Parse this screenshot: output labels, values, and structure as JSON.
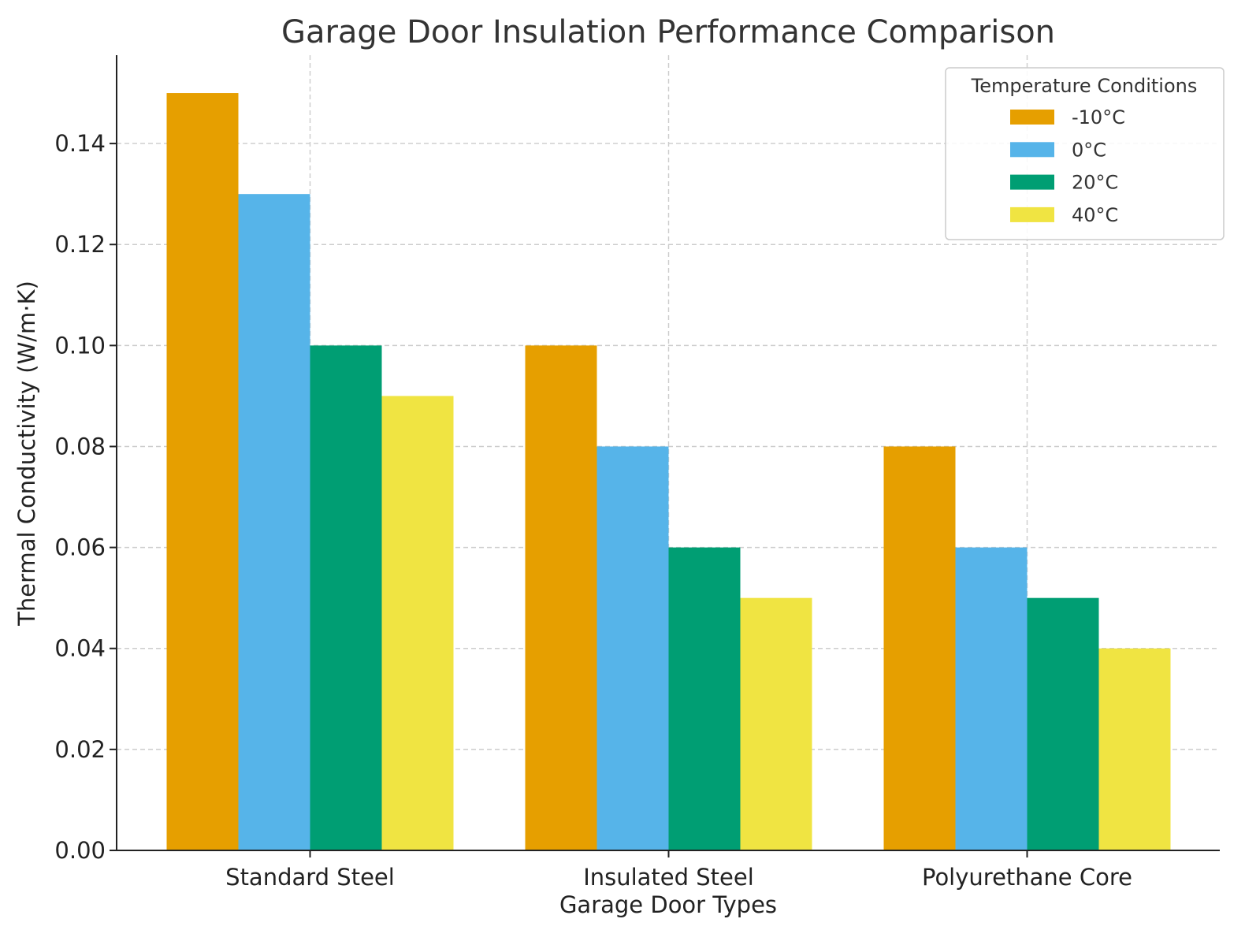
{
  "chart_data": {
    "type": "bar",
    "title": "Garage Door Insulation Performance Comparison",
    "xlabel": "Garage Door Types",
    "ylabel": "Thermal Conductivity (W/m·K)",
    "categories": [
      "Standard Steel",
      "Insulated Steel",
      "Polyurethane Core"
    ],
    "series": [
      {
        "name": "-10°C",
        "color": "#E69F00",
        "values": [
          0.15,
          0.1,
          0.08
        ]
      },
      {
        "name": "0°C",
        "color": "#56B4E9",
        "values": [
          0.13,
          0.08,
          0.06
        ]
      },
      {
        "name": "20°C",
        "color": "#009E73",
        "values": [
          0.1,
          0.06,
          0.05
        ]
      },
      {
        "name": "40°C",
        "color": "#F0E442",
        "values": [
          0.09,
          0.05,
          0.04
        ]
      }
    ],
    "ylim": [
      0,
      0.1575
    ],
    "yticks": [
      "0.00",
      "0.02",
      "0.04",
      "0.06",
      "0.08",
      "0.10",
      "0.12",
      "0.14"
    ],
    "grid": true,
    "legend": {
      "title": "Temperature Conditions",
      "position": "top-right"
    }
  }
}
